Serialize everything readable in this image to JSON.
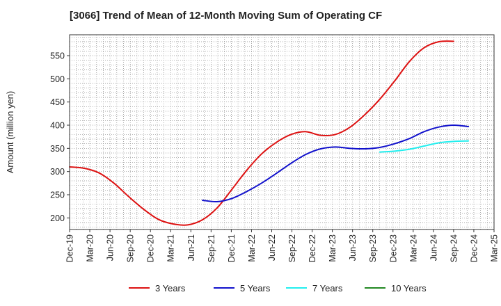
{
  "chart_data": {
    "type": "line",
    "title": "[3066]  Trend of Mean of 12-Month Moving Sum of Operating CF",
    "xlabel": "",
    "ylabel": "Amount (million yen)",
    "ylim": [
      175,
      595
    ],
    "yticks": [
      200,
      250,
      300,
      350,
      400,
      450,
      500,
      550
    ],
    "x_tick_labels": [
      "Dec-19",
      "Mar-20",
      "Jun-20",
      "Sep-20",
      "Dec-20",
      "Mar-21",
      "Jun-21",
      "Sep-21",
      "Dec-21",
      "Mar-22",
      "Jun-22",
      "Sep-22",
      "Dec-22",
      "Mar-23",
      "Jun-23",
      "Sep-23",
      "Dec-23",
      "Mar-24",
      "Jun-24",
      "Sep-24",
      "Dec-24",
      "Mar-25"
    ],
    "grid": true,
    "legend_position": "bottom",
    "series": [
      {
        "name": "3 Years",
        "color": "#dd1111",
        "points": [
          [
            0,
            310
          ],
          [
            1,
            307
          ],
          [
            2,
            297
          ],
          [
            3,
            275
          ],
          [
            4,
            246
          ],
          [
            5,
            219
          ],
          [
            6,
            197
          ],
          [
            7,
            187
          ],
          [
            8,
            185
          ],
          [
            9,
            196
          ],
          [
            10,
            222
          ],
          [
            11,
            262
          ],
          [
            12,
            303
          ],
          [
            13,
            338
          ],
          [
            14,
            363
          ],
          [
            15,
            380
          ],
          [
            16,
            386
          ],
          [
            17,
            378
          ],
          [
            18,
            380
          ],
          [
            19,
            396
          ],
          [
            20,
            423
          ],
          [
            21,
            456
          ],
          [
            22,
            495
          ],
          [
            23,
            537
          ],
          [
            24,
            567
          ],
          [
            25,
            580
          ],
          [
            26,
            581
          ]
        ]
      },
      {
        "name": "5 Years",
        "color": "#1111cc",
        "points": [
          [
            9,
            238
          ],
          [
            10,
            235
          ],
          [
            11,
            242
          ],
          [
            12,
            257
          ],
          [
            13,
            275
          ],
          [
            14,
            296
          ],
          [
            15,
            318
          ],
          [
            16,
            337
          ],
          [
            17,
            349
          ],
          [
            18,
            353
          ],
          [
            19,
            350
          ],
          [
            20,
            349
          ],
          [
            21,
            352
          ],
          [
            22,
            360
          ],
          [
            23,
            371
          ],
          [
            24,
            386
          ],
          [
            25,
            396
          ],
          [
            26,
            400
          ],
          [
            27,
            397
          ]
        ]
      },
      {
        "name": "7 Years",
        "color": "#22eeee",
        "points": [
          [
            21,
            342
          ],
          [
            22,
            344
          ],
          [
            23,
            348
          ],
          [
            24,
            355
          ],
          [
            25,
            362
          ],
          [
            26,
            365
          ],
          [
            27,
            366
          ]
        ]
      },
      {
        "name": "10 Years",
        "color": "#228822",
        "points": []
      }
    ]
  }
}
